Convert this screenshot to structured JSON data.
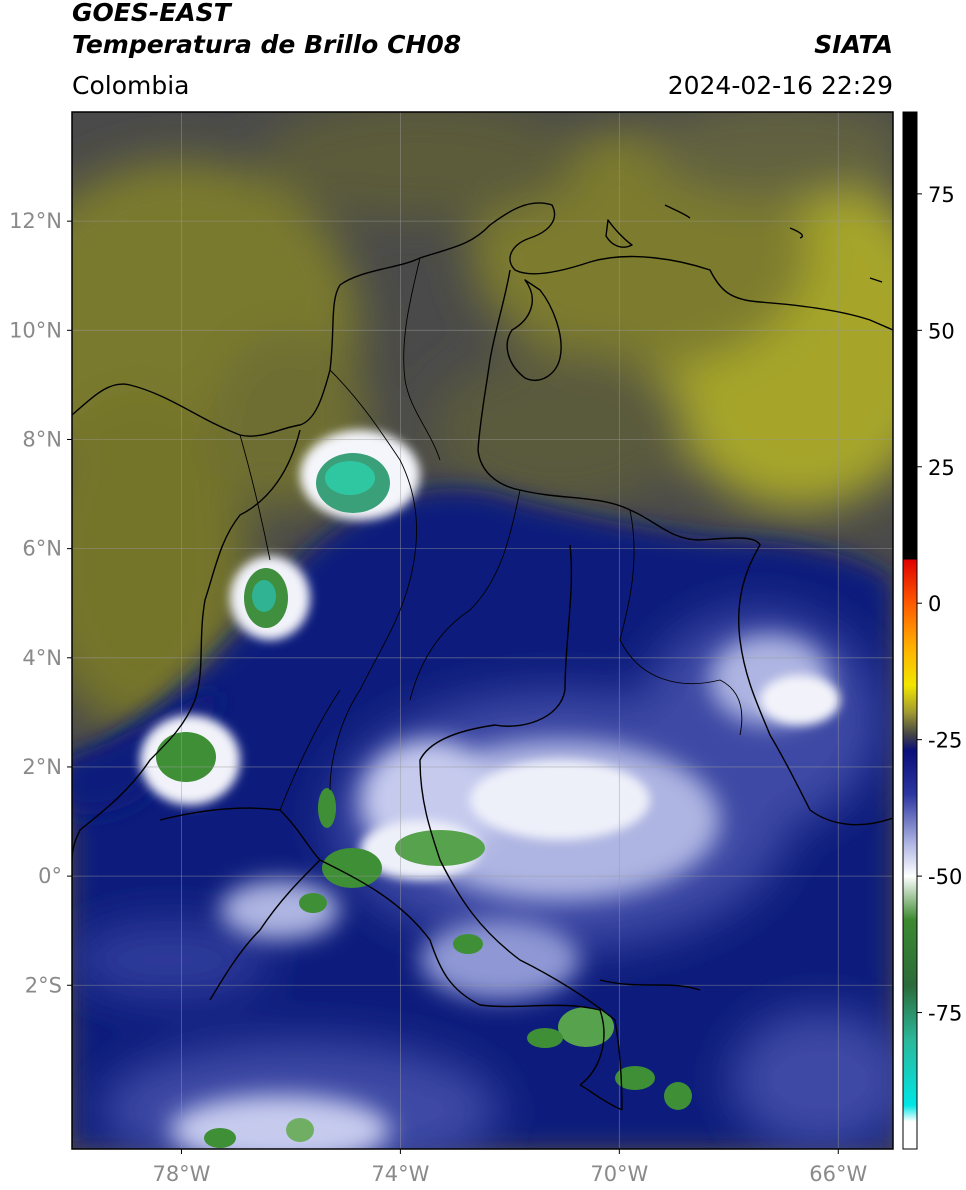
{
  "header": {
    "satellite": "GOES-EAST",
    "product": "Temperatura de Brillo CH08",
    "organization": "SIATA",
    "region": "Colombia",
    "timestamp": "2024-02-16 22:29"
  },
  "map": {
    "lon_range": [
      -80,
      -65
    ],
    "lat_range": [
      -5,
      14
    ],
    "lon_ticks": [
      {
        "value": -78,
        "label": "78°W"
      },
      {
        "value": -74,
        "label": "74°W"
      },
      {
        "value": -70,
        "label": "70°W"
      },
      {
        "value": -66,
        "label": "66°W"
      }
    ],
    "lat_ticks": [
      {
        "value": 12,
        "label": "12°N"
      },
      {
        "value": 10,
        "label": "10°N"
      },
      {
        "value": 8,
        "label": "8°N"
      },
      {
        "value": 6,
        "label": "6°N"
      },
      {
        "value": 4,
        "label": "4°N"
      },
      {
        "value": 2,
        "label": "2°N"
      },
      {
        "value": 0,
        "label": "0°"
      },
      {
        "value": -2,
        "label": "2°S"
      }
    ],
    "colors": {
      "warm_gray": "#4e4e4e",
      "olive": "#7d7d2d",
      "yellow_olive": "#a9a82a",
      "navy": "#0c1a7e",
      "mid_blue": "#3c48a6",
      "pale_blue": "#aab3e0",
      "white_cloud": "#eef0f8",
      "green_core": "#3f8f36",
      "teal_core": "#2cc4a0"
    }
  },
  "colorbar": {
    "range": [
      -100,
      90
    ],
    "ticks": [
      {
        "value": 75,
        "label": "75"
      },
      {
        "value": 50,
        "label": "50"
      },
      {
        "value": 25,
        "label": "25"
      },
      {
        "value": 0,
        "label": "0"
      },
      {
        "value": -25,
        "label": "-25"
      },
      {
        "value": -50,
        "label": "-50"
      },
      {
        "value": -75,
        "label": "-75"
      }
    ],
    "stops": [
      {
        "value": 90,
        "color": "#000000"
      },
      {
        "value": 8,
        "color": "#000000"
      },
      {
        "value": 8,
        "color": "#e00000"
      },
      {
        "value": 0,
        "color": "#ff5a00"
      },
      {
        "value": -8,
        "color": "#ffb000"
      },
      {
        "value": -15,
        "color": "#f2e600"
      },
      {
        "value": -20,
        "color": "#a09a30"
      },
      {
        "value": -24,
        "color": "#454545"
      },
      {
        "value": -27,
        "color": "#0a0f7a"
      },
      {
        "value": -35,
        "color": "#2c36a0"
      },
      {
        "value": -44,
        "color": "#aeb5e3"
      },
      {
        "value": -50,
        "color": "#ffffff"
      },
      {
        "value": -58,
        "color": "#3c8a30"
      },
      {
        "value": -70,
        "color": "#2b6b3a"
      },
      {
        "value": -80,
        "color": "#2bb89a"
      },
      {
        "value": -92,
        "color": "#00e6e6"
      },
      {
        "value": -95,
        "color": "#ffffff"
      },
      {
        "value": -100,
        "color": "#ffffff"
      }
    ]
  }
}
